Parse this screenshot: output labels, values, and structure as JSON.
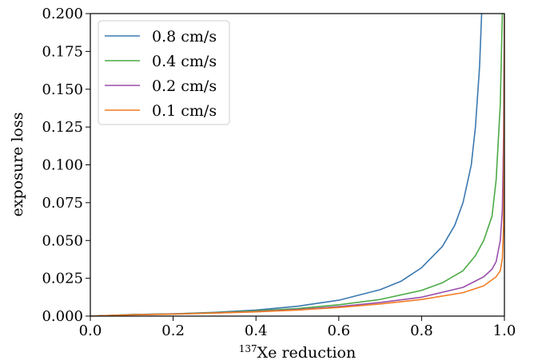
{
  "chart_data": {
    "type": "line",
    "xlabel_sup": "137",
    "xlabel_main": "Xe reduction",
    "ylabel": "exposure loss",
    "xlim": [
      0.0,
      1.0
    ],
    "ylim": [
      0.0,
      0.2
    ],
    "x_ticks": [
      "0.0",
      "0.2",
      "0.4",
      "0.6",
      "0.8",
      "1.0"
    ],
    "y_ticks": [
      "0.000",
      "0.025",
      "0.050",
      "0.075",
      "0.100",
      "0.125",
      "0.150",
      "0.175",
      "0.200"
    ],
    "grid": false,
    "legend_position": "top-left",
    "series": [
      {
        "name": "0.8 cm/s",
        "color": "#3b78b0",
        "points": [
          [
            0,
            0
          ],
          [
            0.1,
            0.001
          ],
          [
            0.2,
            0.0015
          ],
          [
            0.3,
            0.0025
          ],
          [
            0.4,
            0.004
          ],
          [
            0.5,
            0.0065
          ],
          [
            0.6,
            0.0105
          ],
          [
            0.7,
            0.0175
          ],
          [
            0.75,
            0.023
          ],
          [
            0.8,
            0.032
          ],
          [
            0.85,
            0.046
          ],
          [
            0.88,
            0.06
          ],
          [
            0.9,
            0.075
          ],
          [
            0.92,
            0.1
          ],
          [
            0.93,
            0.125
          ],
          [
            0.94,
            0.165
          ],
          [
            0.945,
            0.2
          ]
        ]
      },
      {
        "name": "0.4 cm/s",
        "color": "#4caa45",
        "points": [
          [
            0,
            0
          ],
          [
            0.1,
            0.001
          ],
          [
            0.2,
            0.0015
          ],
          [
            0.3,
            0.0023
          ],
          [
            0.4,
            0.0035
          ],
          [
            0.5,
            0.005
          ],
          [
            0.6,
            0.0075
          ],
          [
            0.7,
            0.011
          ],
          [
            0.8,
            0.017
          ],
          [
            0.85,
            0.022
          ],
          [
            0.9,
            0.03
          ],
          [
            0.93,
            0.04
          ],
          [
            0.95,
            0.05
          ],
          [
            0.97,
            0.066
          ],
          [
            0.98,
            0.09
          ],
          [
            0.99,
            0.14
          ],
          [
            0.995,
            0.2
          ]
        ]
      },
      {
        "name": "0.2 cm/s",
        "color": "#9a4fab",
        "points": [
          [
            0,
            0
          ],
          [
            0.1,
            0.0009
          ],
          [
            0.2,
            0.0014
          ],
          [
            0.3,
            0.0021
          ],
          [
            0.4,
            0.003
          ],
          [
            0.5,
            0.0043
          ],
          [
            0.6,
            0.0063
          ],
          [
            0.7,
            0.009
          ],
          [
            0.8,
            0.0125
          ],
          [
            0.9,
            0.019
          ],
          [
            0.95,
            0.026
          ],
          [
            0.97,
            0.031
          ],
          [
            0.98,
            0.036
          ],
          [
            0.99,
            0.05
          ],
          [
            0.995,
            0.07
          ],
          [
            0.998,
            0.12
          ],
          [
            1.0,
            0.2
          ]
        ]
      },
      {
        "name": "0.1 cm/s",
        "color": "#f17c22",
        "points": [
          [
            0,
            0
          ],
          [
            0.1,
            0.0008
          ],
          [
            0.2,
            0.0013
          ],
          [
            0.3,
            0.002
          ],
          [
            0.4,
            0.0028
          ],
          [
            0.5,
            0.004
          ],
          [
            0.6,
            0.0057
          ],
          [
            0.7,
            0.008
          ],
          [
            0.8,
            0.011
          ],
          [
            0.9,
            0.0155
          ],
          [
            0.95,
            0.02
          ],
          [
            0.98,
            0.026
          ],
          [
            0.99,
            0.03
          ],
          [
            0.995,
            0.038
          ],
          [
            0.998,
            0.06
          ],
          [
            1.0,
            0.2
          ]
        ]
      }
    ]
  }
}
